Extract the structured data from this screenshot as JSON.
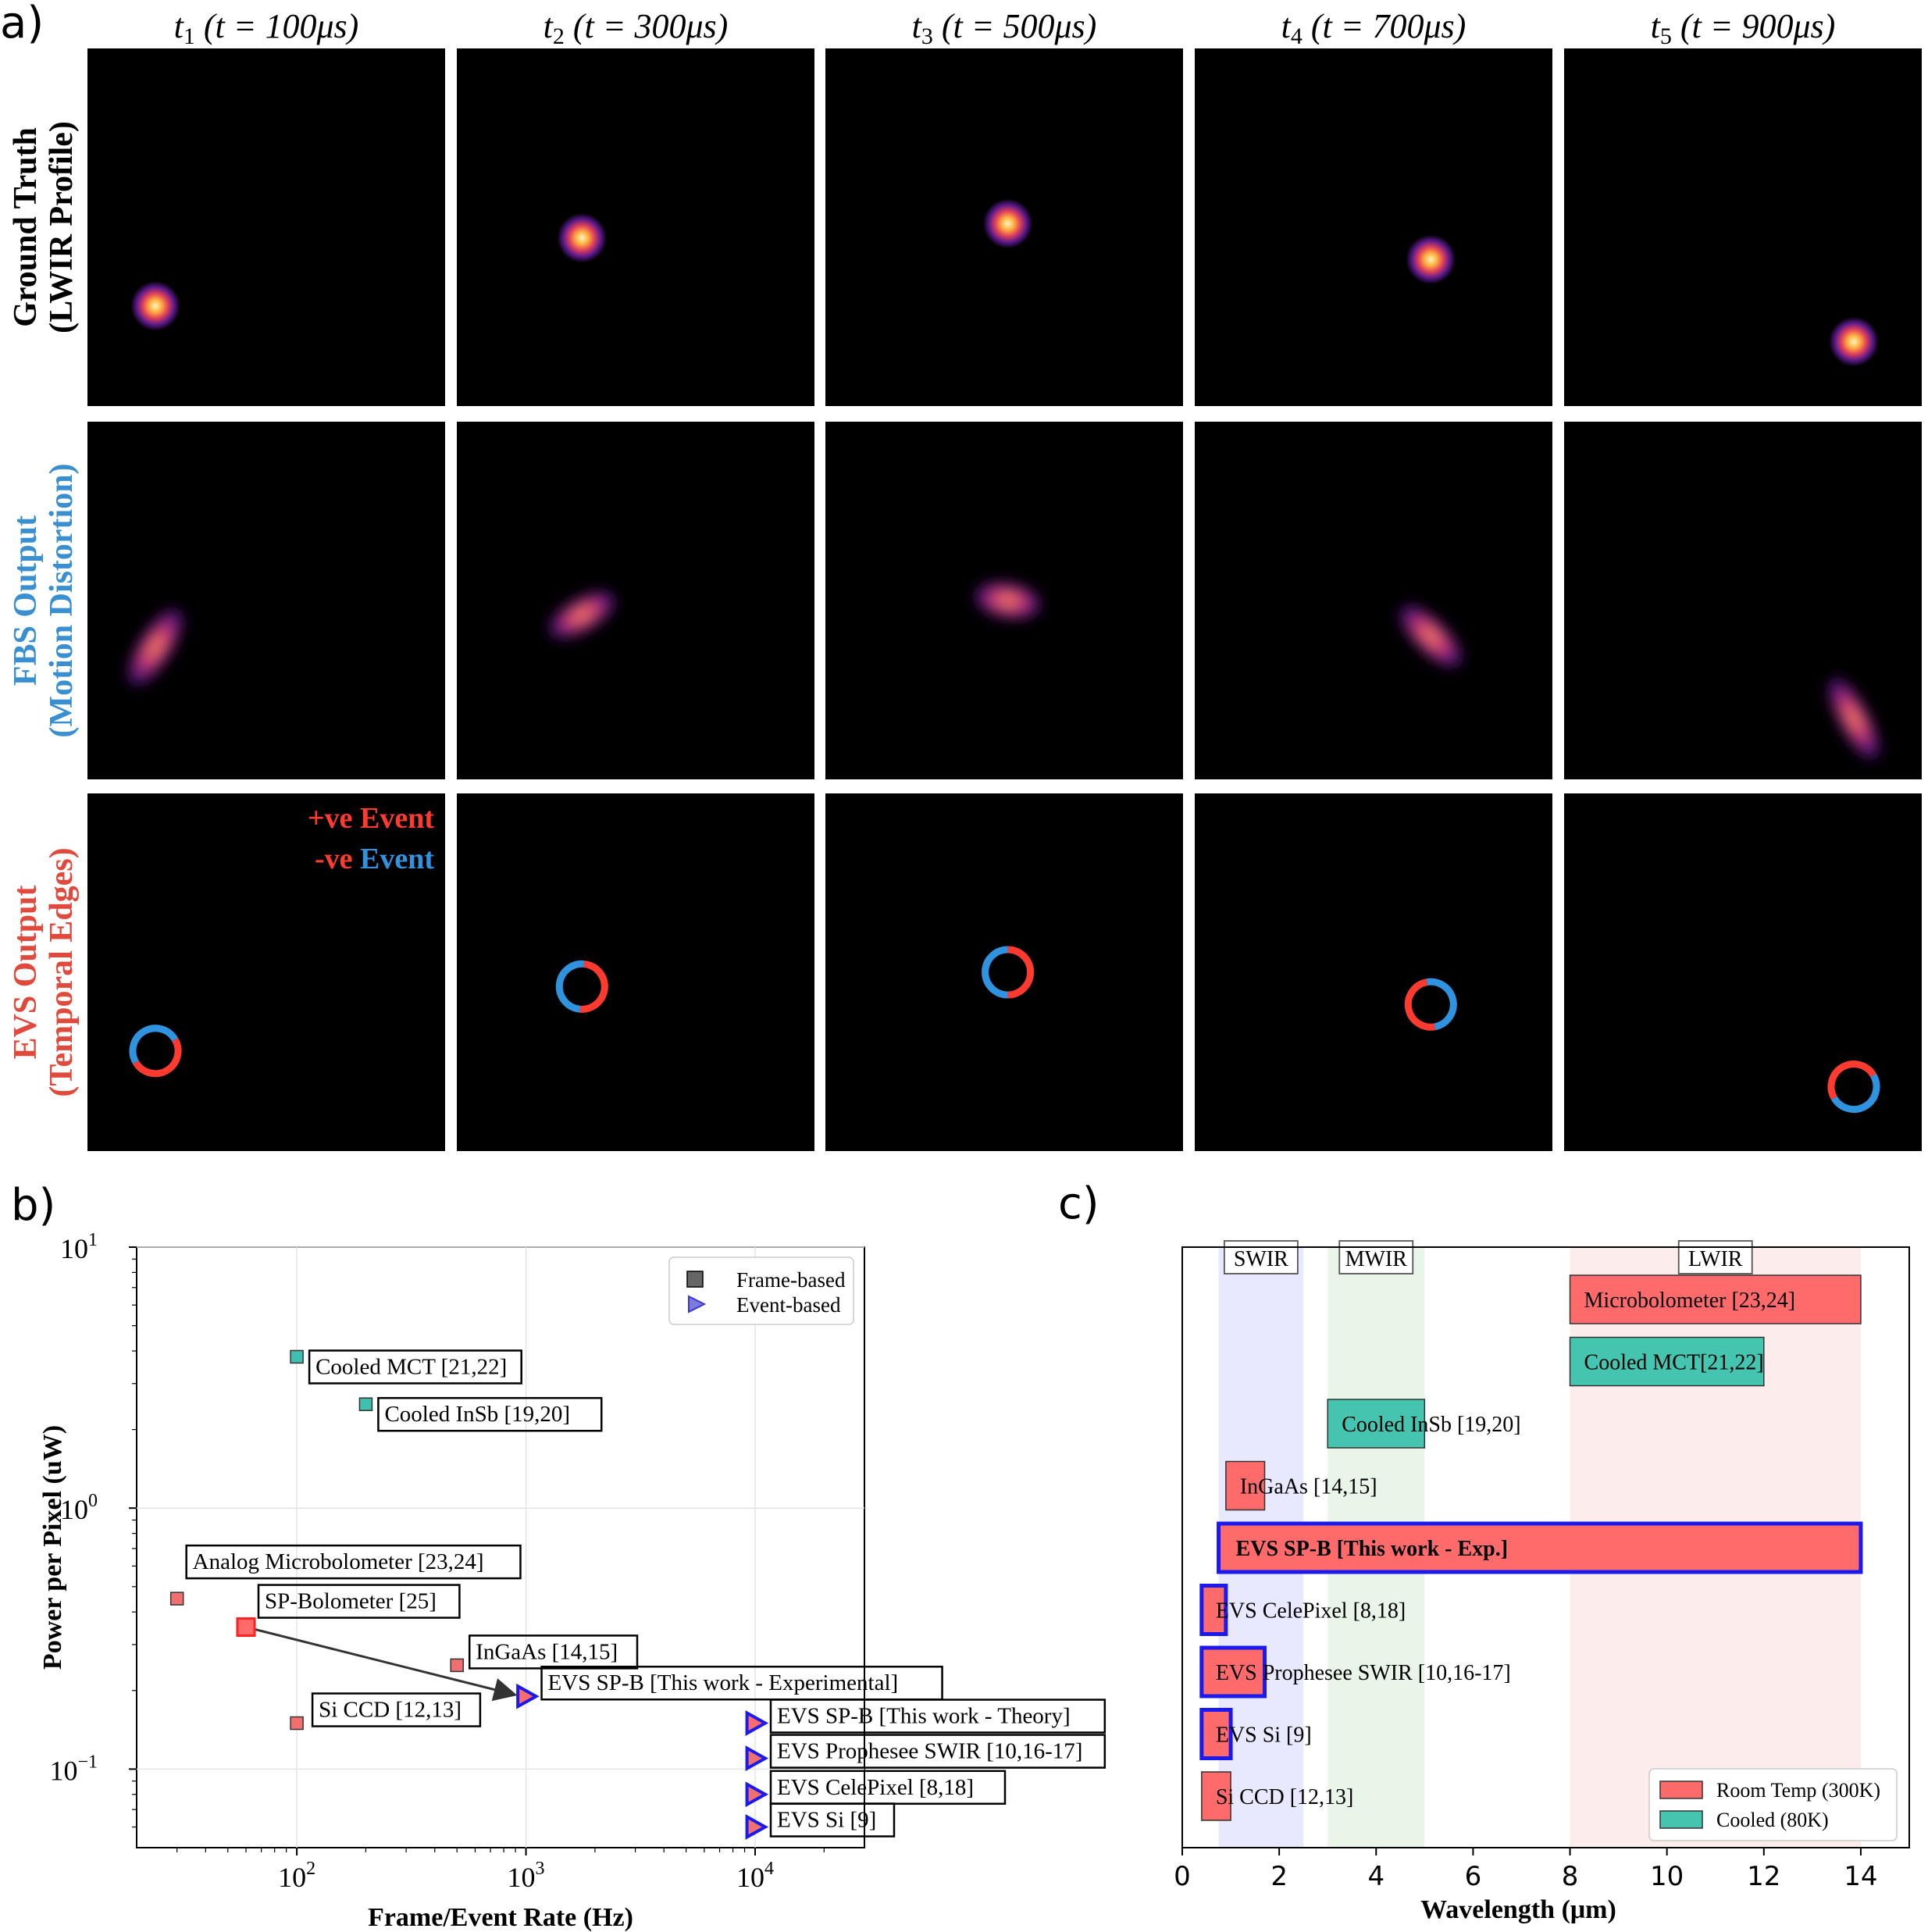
{
  "panel_a": {
    "panel_label": "a)",
    "columns": [
      {
        "sub": "1",
        "time": "(t = 100μs)",
        "t_us": 100
      },
      {
        "sub": "2",
        "time": "(t = 300μs)",
        "t_us": 300
      },
      {
        "sub": "3",
        "time": "(t = 500μs)",
        "t_us": 500
      },
      {
        "sub": "4",
        "time": "(t = 700μs)",
        "t_us": 700
      },
      {
        "sub": "5",
        "time": "(t = 900μs)",
        "t_us": 900
      }
    ],
    "rows": [
      {
        "line1": "Ground Truth",
        "line2": "(LWIR Profile)",
        "color": "#000000"
      },
      {
        "line1": "FBS Output",
        "line2": "(Motion Distortion)",
        "color": "#3a8fd0"
      },
      {
        "line1": "EVS Output",
        "line2": "(Temporal Edges)",
        "color": "#e04a3c"
      }
    ],
    "event_legend": {
      "pos_sign": "+ve",
      "neg_sign": "-ve",
      "word": "Event",
      "pos_color": "#ff3b30",
      "neg_color": "#2f93e0"
    }
  },
  "chart_data": [
    {
      "panel_label": "b)",
      "type": "scatter",
      "xscale": "log",
      "yscale": "log",
      "xlim": [
        20,
        30000
      ],
      "ylim": [
        0.05,
        10
      ],
      "xlabel": "Frame/Event Rate (Hz)",
      "ylabel": "Power per Pixel (uW)",
      "xticks": [
        {
          "value": 100,
          "base": "10",
          "exp": "2"
        },
        {
          "value": 1000,
          "base": "10",
          "exp": "3"
        },
        {
          "value": 10000,
          "base": "10",
          "exp": "4"
        }
      ],
      "yticks": [
        {
          "value": 0.1,
          "base": "10",
          "exp": "−1"
        },
        {
          "value": 1,
          "base": "10",
          "exp": "0"
        },
        {
          "value": 10,
          "base": "10",
          "exp": "1"
        }
      ],
      "grid": true,
      "legend": {
        "position": "top-right",
        "entries": [
          {
            "label": "Frame-based",
            "marker": "square"
          },
          {
            "label": "Event-based",
            "marker": "triangle"
          }
        ]
      },
      "points": [
        {
          "label": "Cooled MCT [21,22]",
          "x": 100,
          "y": 3.8,
          "marker": "square",
          "color": "#3fbfb0"
        },
        {
          "label": "Cooled InSb [19,20]",
          "x": 200,
          "y": 2.5,
          "marker": "square",
          "color": "#3fbfb0"
        },
        {
          "label": "Analog Microbolometer [23,24]",
          "x": 30,
          "y": 0.45,
          "marker": "square",
          "color": "#f07070"
        },
        {
          "label": "SP-Bolometer [25]",
          "x": 60,
          "y": 0.35,
          "marker": "square-large",
          "color": "#ff6b6b"
        },
        {
          "label": "InGaAs [14,15]",
          "x": 500,
          "y": 0.25,
          "marker": "square",
          "color": "#f07070"
        },
        {
          "label": "Si CCD [12,13]",
          "x": 100,
          "y": 0.15,
          "marker": "square",
          "color": "#f07070"
        },
        {
          "label": "EVS SP-B [This work - Experimental]",
          "x": 1000,
          "y": 0.19,
          "marker": "triangle",
          "color": "#ff6b6b"
        },
        {
          "label": "EVS SP-B [This work - Theory]",
          "x": 10000,
          "y": 0.15,
          "marker": "triangle",
          "color": "#ff6b6b"
        },
        {
          "label": "EVS Prophesee SWIR [10,16-17]",
          "x": 10000,
          "y": 0.11,
          "marker": "triangle",
          "color": "#f07070"
        },
        {
          "label": "EVS CelePixel [8,18]",
          "x": 10000,
          "y": 0.08,
          "marker": "triangle",
          "color": "#f07070"
        },
        {
          "label": "EVS Si [9]",
          "x": 10000,
          "y": 0.06,
          "marker": "triangle",
          "color": "#f07070"
        }
      ],
      "arrow": {
        "from_x": 60,
        "from_y": 0.35,
        "to_x": 1000,
        "to_y": 0.19
      }
    },
    {
      "panel_label": "c)",
      "type": "bar",
      "orientation": "horizontal",
      "xlim": [
        0,
        15
      ],
      "xticks": [
        0,
        2,
        4,
        6,
        8,
        10,
        12,
        14
      ],
      "xlabel": "Wavelength (μm)",
      "bands": [
        {
          "label": "SWIR",
          "from": 0.75,
          "to": 2.5,
          "color": "#e8e8ff"
        },
        {
          "label": "MWIR",
          "from": 3,
          "to": 5,
          "color": "#e8f5e8"
        },
        {
          "label": "LWIR",
          "from": 8,
          "to": 14,
          "color": "#fcecec"
        }
      ],
      "bars": [
        {
          "label": "Microbolometer [23,24]",
          "from": 8,
          "to": 14,
          "group": "room",
          "highlight": false,
          "bold": false
        },
        {
          "label": "Cooled MCT[21,22]",
          "from": 8,
          "to": 12,
          "group": "cooled",
          "highlight": false,
          "bold": false
        },
        {
          "label": "Cooled InSb [19,20]",
          "from": 3,
          "to": 5,
          "group": "cooled",
          "highlight": false,
          "bold": false
        },
        {
          "label": "InGaAs [14,15]",
          "from": 0.9,
          "to": 1.7,
          "group": "room",
          "highlight": false,
          "bold": false
        },
        {
          "label": "EVS SP-B [This work - Exp.]",
          "from": 0.75,
          "to": 14,
          "group": "room",
          "highlight": true,
          "bold": true
        },
        {
          "label": "EVS CelePixel [8,18]",
          "from": 0.4,
          "to": 0.9,
          "group": "room",
          "highlight": true,
          "bold": false
        },
        {
          "label": "EVS Prophesee SWIR [10,16-17]",
          "from": 0.4,
          "to": 1.7,
          "group": "room",
          "highlight": true,
          "bold": false
        },
        {
          "label": "EVS Si [9]",
          "from": 0.4,
          "to": 1.0,
          "group": "room",
          "highlight": true,
          "bold": false
        },
        {
          "label": "Si CCD [12,13]",
          "from": 0.4,
          "to": 1.0,
          "group": "room",
          "highlight": false,
          "bold": false
        }
      ],
      "legend": {
        "position": "bottom-right",
        "entries": [
          {
            "label": "Room Temp (300K)",
            "group": "room",
            "color": "#ff6b6b"
          },
          {
            "label": "Cooled (80K)",
            "group": "cooled",
            "color": "#45c4b0"
          }
        ]
      },
      "colors": {
        "room": "#ff6b6b",
        "cooled": "#45c4b0",
        "highlight_edge": "#1a1aee"
      }
    }
  ]
}
